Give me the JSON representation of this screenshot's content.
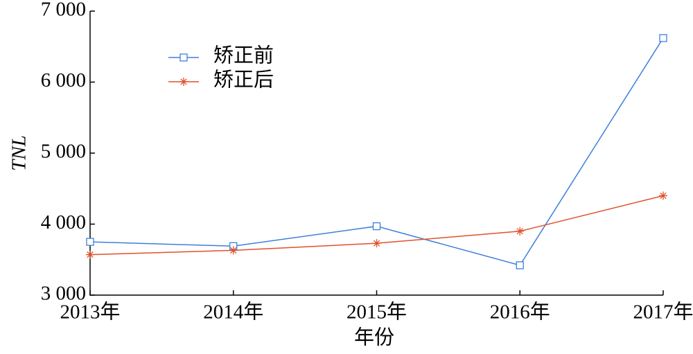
{
  "chart_data": {
    "type": "line",
    "categories": [
      "2013年",
      "2014年",
      "2015年",
      "2016年",
      "2017年"
    ],
    "series": [
      {
        "name": "矫正前",
        "color": "#3b7fdc",
        "marker": "square",
        "values": [
          3750,
          3690,
          3970,
          3420,
          6620
        ]
      },
      {
        "name": "矫正后",
        "color": "#e0502a",
        "marker": "asterisk",
        "values": [
          3570,
          3630,
          3730,
          3900,
          4400
        ]
      }
    ],
    "ylim": [
      3000,
      7000
    ],
    "yticks": [
      {
        "value": 3000,
        "label": "3 000"
      },
      {
        "value": 4000,
        "label": "4 000"
      },
      {
        "value": 5000,
        "label": "5 000"
      },
      {
        "value": 6000,
        "label": "6 000"
      },
      {
        "value": 7000,
        "label": "7 000"
      }
    ],
    "xlabel": "年份",
    "ylabel": "TNL"
  }
}
